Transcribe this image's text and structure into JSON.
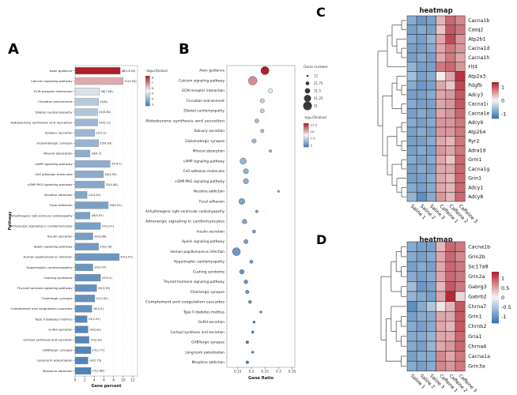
{
  "figure": {
    "panel_a_label": "A",
    "panel_b_label": "B",
    "panel_c_label": "C",
    "panel_d_label": "D"
  },
  "colors": {
    "bar_blue": "#4a7fb5",
    "bar_red": "#ad1f2a",
    "mid_white": "#f7f5f4",
    "heat_blue": "#3c76b3",
    "heat_red": "#b22230",
    "dendrogram": "#5a5a5a"
  },
  "chart_data": [
    {
      "id": "panelA",
      "type": "bar",
      "xlabel": "Gene percent",
      "ylabel": "Pathway",
      "xlim": [
        0,
        13
      ],
      "xticks": [
        0,
        2,
        4,
        6,
        8,
        10,
        12
      ],
      "legend_title": "-log₁₀(Qvalue)",
      "legend_ticks": [
        8,
        7,
        6,
        5,
        4,
        3
      ],
      "categories": [
        "Axon guidance",
        "Calcium signaling pathway",
        "ECM-receptor interaction",
        "Circadian entrainment",
        "Dilated cardiomyopathy",
        "Aldosterone synthesis and secretion",
        "Salivary secretion",
        "Glutamatergic synapse",
        "Mineral absorption",
        "cAMP signaling pathway",
        "Cell adhesion molecules",
        "cGMP-PKG signaling pathway",
        "Nicotine addiction",
        "Focal adhesion",
        "Arrhythmogenic right ventricular cardiomyopathy",
        "Adrenergic signaling in cardiomyocytes",
        "Insulin secretion",
        "Apelin signaling pathway",
        "Human papillomavirus infection",
        "Hypertrophic cardiomyopathy",
        "Cushing syndrome",
        "Thyroid hormone signaling pathway",
        "Cholinergic synapse",
        "Complement and coagulation cascades",
        "Type II diabetes mellitus",
        "GnRH secretion",
        "Cortisol synthesis and secretion",
        "GABAergic synapse",
        "Long-term potentiation",
        "Morphine addiction"
      ],
      "gene_percent": [
        9.4,
        10.0,
        5.1,
        4.9,
        4.7,
        4.7,
        4.1,
        4.9,
        3.1,
        7.3,
        5.9,
        6.1,
        2.5,
        6.9,
        3.1,
        5.3,
        3.7,
        4.9,
        9.2,
        3.7,
        5.3,
        4.5,
        4.1,
        3.5,
        2.5,
        2.7,
        2.9,
        3.3,
        2.7,
        3.3
      ],
      "gene_count": [
        48,
        51,
        26,
        25,
        24,
        24,
        21,
        25,
        16,
        37,
        30,
        31,
        13,
        35,
        16,
        27,
        19,
        25,
        47,
        19,
        27,
        23,
        21,
        18,
        13,
        14,
        15,
        17,
        14,
        17
      ],
      "neg_log10_qvalue": [
        13.5,
        9.94,
        7.08,
        6,
        5.81,
        5.11,
        5.1,
        4.99,
        4.7,
        4.7,
        4.59,
        4.48,
        4.29,
        4.01,
        3.97,
        3.97,
        3.88,
        3.78,
        3.57,
        3.57,
        3.4,
        3.35,
        3.32,
        3.3,
        2.91,
        2.81,
        2.81,
        2.77,
        2.75,
        2.68
      ],
      "bar_labels": [
        "48(13.50)",
        "51(9.94)",
        "26(7.08)",
        "25(6)",
        "24(5.81)",
        "24(5.11)",
        "21(5.1)",
        "25(4.99)",
        "16(4.7)",
        "37(4.7)",
        "30(4.59)",
        "31(4.48)",
        "13(4.29)",
        "35(4.01)",
        "16(3.97)",
        "27(3.97)",
        "19(3.88)",
        "25(3.78)",
        "47(3.57)",
        "19(3.57)",
        "27(3.4)",
        "23(3.35)",
        "21(3.32)",
        "18(3.3)",
        "13(2.91)",
        "14(2.81)",
        "15(2.81)",
        "17(2.77)",
        "14(2.75)",
        "17(2.68)"
      ]
    },
    {
      "id": "panelB",
      "type": "scatter",
      "xlabel": "Gene Ratio",
      "xlim": [
        0.11,
        0.36
      ],
      "xticks": [
        0.15,
        0.2,
        0.25,
        0.3,
        0.35
      ],
      "size_legend_title": "Gene number",
      "size_legend_values": [
        12,
        21.75,
        31.5,
        41.25,
        51
      ],
      "color_legend_title": "-log₁₀(Qvalue)",
      "color_legend_ticks": [
        12.5,
        10,
        7.5,
        5
      ],
      "categories": [
        "Axon guidance",
        "Calcium signaling pathway",
        "ECM-receptor interaction",
        "Circadian entrainment",
        "Dilated cardiomyopathy",
        "Aldosterone synthesis and secretion",
        "Salivary secretion",
        "Glutamatergic synapse",
        "Mineral absorption",
        "cAMP signaling pathway",
        "Cell adhesion molecules",
        "cGMP-PKG signaling pathway",
        "Nicotine addiction",
        "Focal adhesion",
        "Arrhythmogenic right ventricular cardiomyopathy",
        "Adrenergic signaling in cardiomyocytes",
        "Insulin secretion",
        "Apelin signaling pathway",
        "Human papillomavirus infection",
        "Hypertrophic cardiomyopathy",
        "Cushing syndrome",
        "Thyroid hormone signaling pathway",
        "Cholinergic synapse",
        "Complement and coagulation cascades",
        "Type II diabetes mellitus",
        "GnRH secretion",
        "Cortisol synthesis and secretion",
        "GABAergic synapse",
        "Long-term potentiation",
        "Morphine addiction"
      ],
      "gene_ratio": [
        0.25,
        0.205,
        0.27,
        0.24,
        0.24,
        0.22,
        0.24,
        0.21,
        0.27,
        0.17,
        0.18,
        0.18,
        0.3,
        0.165,
        0.22,
        0.175,
        0.21,
        0.18,
        0.145,
        0.2,
        0.165,
        0.18,
        0.185,
        0.195,
        0.235,
        0.21,
        0.205,
        0.185,
        0.205,
        0.185
      ],
      "gene_number": [
        48,
        51,
        26,
        25,
        24,
        24,
        21,
        25,
        16,
        37,
        30,
        31,
        13,
        35,
        16,
        27,
        19,
        25,
        47,
        19,
        27,
        23,
        21,
        18,
        13,
        14,
        15,
        17,
        14,
        17
      ],
      "neg_log10_qvalue": [
        13.5,
        9.94,
        7.08,
        6,
        5.81,
        5.11,
        5.1,
        4.99,
        4.7,
        4.7,
        4.59,
        4.48,
        4.29,
        4.01,
        3.97,
        3.97,
        3.88,
        3.78,
        3.57,
        3.57,
        3.4,
        3.35,
        3.32,
        3.3,
        2.91,
        2.81,
        2.81,
        2.77,
        2.75,
        2.68
      ]
    },
    {
      "id": "panelC",
      "type": "heatmap",
      "title": "heatmap",
      "columns": [
        "Saline 1",
        "Saline 2",
        "Saline 3",
        "Caffeine 1",
        "Caffeine 2",
        "Caffeine 3"
      ],
      "rows": [
        "Cacna1b",
        "Casq2",
        "Atp2b1",
        "Cacna1d",
        "Cacna1h",
        "Flt4",
        "Atp2a3",
        "Pdgfb",
        "Adcy3",
        "Cacna1i",
        "Cacna1e",
        "Adcy9",
        "Atp2b4",
        "Ryr2",
        "Adra1d",
        "Grm1",
        "Cacna1g",
        "Grin1",
        "Adcy1",
        "Adcy8"
      ],
      "values": [
        [
          -0.8,
          -1.0,
          -0.9,
          0.4,
          0.9,
          0.7
        ],
        [
          -0.9,
          -0.8,
          -0.9,
          0.3,
          1.0,
          0.8
        ],
        [
          -0.8,
          -0.9,
          -0.7,
          0.5,
          1.1,
          0.6
        ],
        [
          -0.9,
          -0.9,
          -0.8,
          0.5,
          0.8,
          0.6
        ],
        [
          -0.9,
          -0.8,
          -0.9,
          0.5,
          0.8,
          0.5
        ],
        [
          -0.7,
          -0.9,
          -0.9,
          0.8,
          0.9,
          0.6
        ],
        [
          -0.6,
          -0.9,
          -0.8,
          0.05,
          0.5,
          1.25
        ],
        [
          -0.8,
          -1.0,
          -0.9,
          0.5,
          0.3,
          1.1
        ],
        [
          -0.9,
          -0.9,
          -0.8,
          0.5,
          0.6,
          1.0
        ],
        [
          -0.8,
          -0.9,
          -0.9,
          0.5,
          0.6,
          1.0
        ],
        [
          -0.9,
          -0.8,
          -0.9,
          0.5,
          0.6,
          0.9
        ],
        [
          -0.8,
          -0.9,
          -0.8,
          0.6,
          0.6,
          0.8
        ],
        [
          -0.9,
          -0.8,
          -0.9,
          0.6,
          0.6,
          0.8
        ],
        [
          -0.9,
          -0.9,
          -0.8,
          0.5,
          0.4,
          0.8
        ],
        [
          -0.9,
          -0.8,
          -0.9,
          0.6,
          0.5,
          0.8
        ],
        [
          -0.8,
          -0.9,
          -0.8,
          0.5,
          0.3,
          0.9
        ],
        [
          -0.9,
          -0.8,
          -0.9,
          0.5,
          0.5,
          0.9
        ],
        [
          -0.9,
          -0.9,
          -0.8,
          0.5,
          0.4,
          0.9
        ],
        [
          -0.8,
          -0.9,
          -0.8,
          0.5,
          0.4,
          0.9
        ],
        [
          -0.7,
          -1.1,
          -0.8,
          0.6,
          0.4,
          0.9
        ]
      ],
      "vmin": -1.35,
      "vmax": 1.35,
      "colorbar_ticks": [
        1,
        0,
        -1
      ]
    },
    {
      "id": "panelD",
      "type": "heatmap",
      "title": "heatmap",
      "columns": [
        "Saline 1",
        "Saline 2",
        "Saline 3",
        "Caffeine 1",
        "Caffeine 2",
        "Caffeine 3"
      ],
      "rows": [
        "Cacna1b",
        "Grin2b",
        "Slc17a8",
        "Grin2a",
        "Gabrg3",
        "Gabrb2",
        "Chrna7",
        "Grin1",
        "Chrnb2",
        "Gria1",
        "Chrna4",
        "Cacna1a",
        "Grin3a"
      ],
      "values": [
        [
          -0.8,
          -0.9,
          -0.9,
          0.4,
          0.9,
          0.8
        ],
        [
          -0.8,
          -0.9,
          -0.8,
          0.5,
          0.9,
          0.7
        ],
        [
          -0.9,
          -0.8,
          -0.9,
          0.5,
          0.9,
          0.8
        ],
        [
          -0.8,
          -0.9,
          -0.8,
          0.5,
          0.9,
          0.8
        ],
        [
          -0.6,
          -1.0,
          -0.9,
          0.4,
          1.0,
          0.8
        ],
        [
          -0.7,
          -0.8,
          -0.9,
          0.5,
          1.3,
          0.2
        ],
        [
          -1.1,
          -0.8,
          -0.5,
          0.1,
          0.4,
          1.0
        ],
        [
          -0.9,
          -0.8,
          -0.8,
          0.5,
          0.5,
          1.0
        ],
        [
          -0.8,
          -0.9,
          -0.8,
          0.5,
          0.4,
          1.0
        ],
        [
          -0.8,
          -0.8,
          -0.7,
          0.5,
          0.5,
          0.9
        ],
        [
          -0.8,
          -0.9,
          -0.7,
          0.5,
          0.6,
          0.9
        ],
        [
          -0.9,
          -0.8,
          -0.8,
          0.7,
          0.5,
          0.8
        ],
        [
          -0.8,
          -0.9,
          -0.8,
          0.7,
          0.6,
          0.8
        ]
      ],
      "vmin": -1.35,
      "vmax": 1.35,
      "colorbar_ticks": [
        1,
        0.5,
        0,
        -0.5,
        -1
      ]
    }
  ]
}
